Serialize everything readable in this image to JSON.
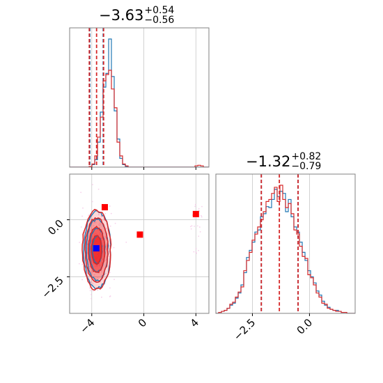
{
  "chart_data": {
    "type": "corner",
    "params": [
      {
        "title_main": "−3.63",
        "title_up": "+0.54",
        "title_down": "−0.56",
        "range": [
          -5.7,
          5.0
        ],
        "ticks": [
          -4,
          0,
          4
        ],
        "tick_labels": [
          "−4",
          "0",
          "4"
        ],
        "quantiles_red": [
          -4.19,
          -3.63,
          -3.09
        ],
        "quantiles_blue": [
          -4.15,
          -3.12
        ]
      },
      {
        "title_main": "−1.32",
        "title_up": "+0.82",
        "title_down": "−0.79",
        "range": [
          -4.1,
          2.0
        ],
        "ticks": [
          -2.5,
          0.0
        ],
        "tick_labels": [
          "−2.5",
          "0.0"
        ],
        "quantiles_red": [
          -2.11,
          -1.32,
          -0.5
        ],
        "quantiles_blue": [
          -2.11,
          -0.5
        ]
      }
    ],
    "hist_x": {
      "edges_start": -5.7,
      "bin_width": 0.214,
      "blue": [
        0,
        0,
        0,
        0,
        0,
        0,
        0,
        1,
        4,
        12,
        40,
        88,
        128,
        150,
        205,
        145,
        90,
        45,
        14,
        4,
        1,
        0,
        0,
        0,
        0,
        0,
        0,
        0,
        0,
        0,
        0,
        0,
        0,
        0,
        0,
        0,
        0,
        0,
        0,
        0,
        0,
        0,
        0,
        0,
        0,
        0,
        0,
        0,
        0,
        0
      ],
      "red": [
        0,
        0,
        0,
        0,
        0,
        0,
        0,
        1,
        5,
        18,
        48,
        80,
        138,
        148,
        155,
        125,
        95,
        40,
        18,
        5,
        2,
        0,
        0,
        0,
        0,
        0,
        0,
        0,
        0,
        0,
        0,
        0,
        0,
        0,
        0,
        0,
        0,
        0,
        0,
        0,
        0,
        0,
        0,
        0,
        0,
        2,
        3,
        2,
        0,
        0
      ]
    },
    "hist_y": {
      "edges_start": -4.1,
      "bin_width": 0.122,
      "blue": [
        0,
        1,
        2,
        3,
        5,
        8,
        10,
        15,
        20,
        28,
        40,
        55,
        62,
        70,
        80,
        82,
        95,
        98,
        105,
        104,
        112,
        122,
        115,
        120,
        118,
        100,
        112,
        95,
        85,
        80,
        70,
        60,
        52,
        42,
        36,
        30,
        22,
        18,
        12,
        8,
        6,
        4,
        3,
        3,
        2,
        1,
        1,
        0,
        0,
        0
      ],
      "red": [
        0,
        1,
        2,
        3,
        5,
        9,
        11,
        16,
        21,
        26,
        42,
        52,
        60,
        72,
        78,
        85,
        92,
        100,
        110,
        112,
        118,
        124,
        110,
        126,
        112,
        104,
        108,
        98,
        82,
        78,
        66,
        56,
        54,
        38,
        35,
        28,
        20,
        16,
        10,
        9,
        5,
        4,
        3,
        2,
        2,
        1,
        1,
        0,
        0,
        0
      ]
    },
    "scatter_2d": {
      "red_squares": [
        [
          -3.0,
          0.55
        ],
        [
          -0.3,
          -0.65
        ],
        [
          4.0,
          0.25
        ]
      ],
      "blue_square": [
        -3.65,
        -1.25
      ],
      "center": [
        -3.63,
        -1.32
      ],
      "sigma": [
        0.45,
        0.72
      ]
    },
    "colors": {
      "blue": "#1f77b4",
      "red": "#d62728",
      "red_fill": "#ee2222",
      "grid": "#c8c8c8",
      "scatter": "#f4c6e6"
    }
  }
}
